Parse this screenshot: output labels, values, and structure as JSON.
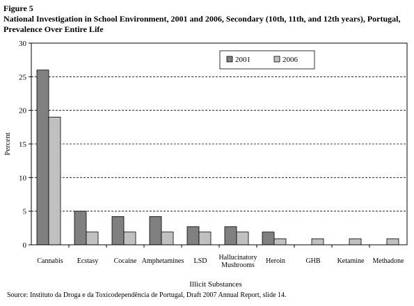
{
  "figure_label": "Figure 5",
  "title": "National Investigation in School Environment, 2001 and 2006, Secondary (10th, 11th, and 12th years), Portugal,  Prevalence Over Entire Life",
  "source": "Source: Instituto da Droga e da Toxicodependência de Portugal, Draft 2007 Annual Report, slide 14.",
  "colors": {
    "2001": "#808080",
    "2006": "#c0c0c0"
  },
  "chart_data": {
    "type": "bar",
    "title": "National Investigation in School Environment, 2001 and 2006, Secondary (10th, 11th, and 12th years), Portugal,  Prevalence Over Entire Life",
    "xlabel": "Illicit Substances",
    "ylabel": "Percent",
    "ylim": [
      0,
      30
    ],
    "yticks": [
      "0",
      "5",
      "10",
      "15",
      "20",
      "25",
      "30"
    ],
    "grid": true,
    "legend": "top-center",
    "categories": [
      [
        "Cannabis"
      ],
      [
        "Ecstasy"
      ],
      [
        "Cocaine"
      ],
      [
        "Amphetamines"
      ],
      [
        "LSD"
      ],
      [
        "Hallucinatory",
        "Mushrooms"
      ],
      [
        "Heroin"
      ],
      [
        "GHB"
      ],
      [
        "Ketamine"
      ],
      [
        "Methadone"
      ]
    ],
    "series": [
      {
        "name": "2001",
        "values": [
          26,
          5,
          4.2,
          4.2,
          2.7,
          2.7,
          1.9,
          null,
          null,
          null
        ]
      },
      {
        "name": "2006",
        "values": [
          19,
          1.9,
          1.9,
          1.9,
          1.9,
          1.9,
          0.9,
          0.9,
          0.9,
          0.9
        ]
      }
    ]
  }
}
